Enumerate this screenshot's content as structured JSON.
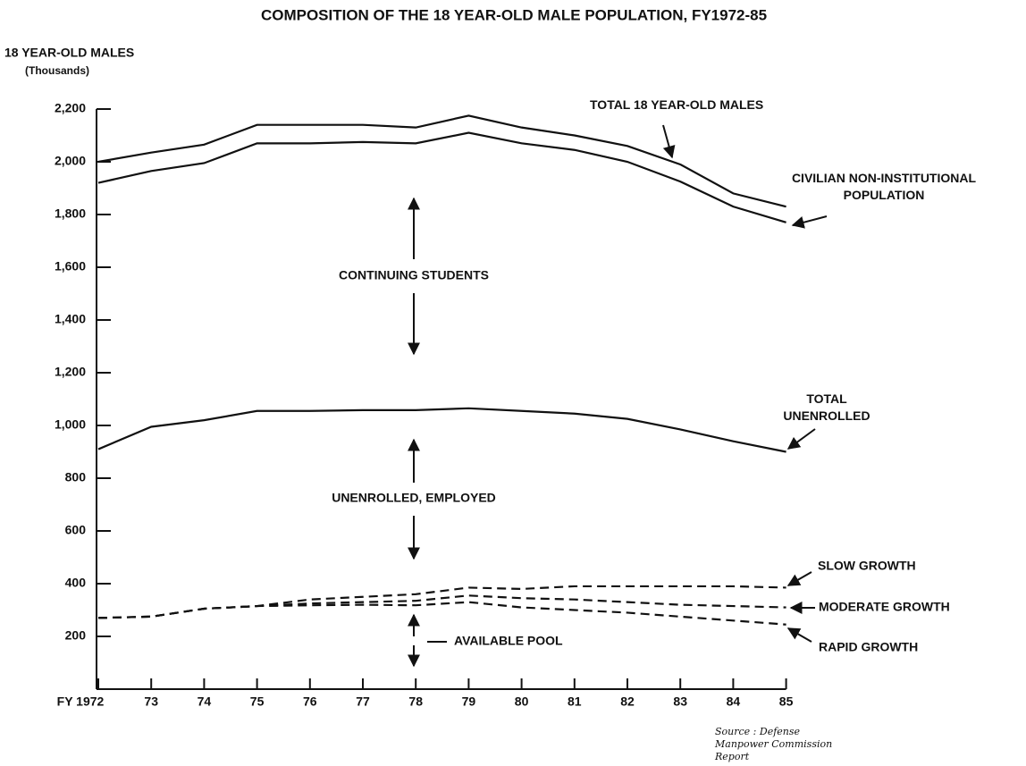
{
  "chart_data": {
    "type": "line",
    "title": "COMPOSITION OF THE 18 YEAR-OLD MALE POPULATION, FY1972-85",
    "y_label": "18 YEAR-OLD MALES",
    "y_unit": "(Thousands)",
    "categories": [
      "FY 1972",
      "73",
      "74",
      "75",
      "76",
      "77",
      "78",
      "79",
      "80",
      "81",
      "82",
      "83",
      "84",
      "85"
    ],
    "series": [
      {
        "name": "TOTAL 18 YEAR-OLD MALES",
        "color": "#111111",
        "dashed": false,
        "values": [
          2000,
          2035,
          2065,
          2140,
          2140,
          2140,
          2130,
          2175,
          2130,
          2100,
          2060,
          1990,
          1880,
          1830
        ]
      },
      {
        "name": "CIVILIAN NON-INSTITUTIONAL POPULATION",
        "color": "#111111",
        "dashed": false,
        "values": [
          1920,
          1965,
          1995,
          2070,
          2070,
          2075,
          2070,
          2110,
          2070,
          2045,
          2000,
          1925,
          1830,
          1770
        ]
      },
      {
        "name": "TOTAL UNENROLLED",
        "color": "#111111",
        "dashed": false,
        "values": [
          910,
          995,
          1020,
          1055,
          1055,
          1058,
          1058,
          1065,
          1055,
          1045,
          1025,
          985,
          940,
          900
        ]
      },
      {
        "name": "SLOW GROWTH",
        "color": "#111111",
        "dashed": true,
        "values": [
          270,
          275,
          305,
          315,
          340,
          350,
          360,
          385,
          380,
          390,
          390,
          390,
          390,
          385
        ]
      },
      {
        "name": "MODERATE GROWTH",
        "color": "#111111",
        "dashed": true,
        "values": [
          270,
          275,
          305,
          315,
          325,
          330,
          335,
          355,
          345,
          340,
          330,
          320,
          315,
          310
        ]
      },
      {
        "name": "RAPID GROWTH",
        "color": "#111111",
        "dashed": true,
        "values": [
          270,
          275,
          305,
          315,
          318,
          320,
          318,
          330,
          310,
          300,
          290,
          275,
          260,
          245
        ]
      }
    ],
    "annotations": [
      "CONTINUING STUDENTS",
      "UNENROLLED, EMPLOYED",
      "AVAILABLE POOL"
    ],
    "source": "Source : Defense Manpower Commission Report",
    "ylim": [
      0,
      2200
    ],
    "yticks": [
      200,
      400,
      600,
      800,
      {
        "value": 1000,
        "label": "1,000"
      },
      {
        "value": 1200,
        "label": "1,200"
      },
      {
        "value": 1400,
        "label": "1,400"
      },
      {
        "value": 1600,
        "label": "1,600"
      },
      {
        "value": 1800,
        "label": "1,800"
      },
      {
        "value": 2000,
        "label": "2,000"
      },
      {
        "value": 2200,
        "label": "2,200"
      }
    ]
  }
}
